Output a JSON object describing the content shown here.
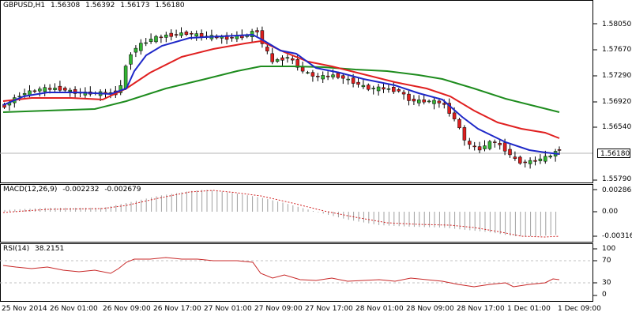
{
  "main": {
    "symbol": "GBPUSD,H1",
    "ohlc": [
      "1.56308",
      "1.56392",
      "1.56173",
      "1.56180"
    ],
    "current_price": "1.56180",
    "price_labels": [
      "1.58050",
      "1.57670",
      "1.57290",
      "1.56920",
      "1.56540",
      "1.55790"
    ]
  },
  "macd": {
    "title": "MACD(12,26,9)",
    "values": [
      "-0.002232",
      "-0.002679"
    ],
    "axis_labels": [
      "0.002865",
      "0.00",
      "-0.003167"
    ]
  },
  "rsi": {
    "title": "RSI(14)",
    "value": "38.2151",
    "axis_labels": [
      "100",
      "70",
      "30",
      "0"
    ]
  },
  "time_labels": [
    "25 Nov 2014",
    "26 Nov 01:00",
    "26 Nov 09:00",
    "26 Nov 17:00",
    "27 Nov 01:00",
    "27 Nov 09:00",
    "27 Nov 17:00",
    "28 Nov 01:00",
    "28 Nov 09:00",
    "28 Nov 17:00",
    "1 Dec 01:00",
    "1 Dec 09:00"
  ],
  "colors": {
    "bull": "#32b432",
    "bear": "#dc1e1e",
    "ma_fast": "#1e28c8",
    "ma_mid": "#e02020",
    "ma_slow": "#1e8c1e",
    "macd_signal": "#d02020",
    "rsi_line": "#c82828"
  }
}
